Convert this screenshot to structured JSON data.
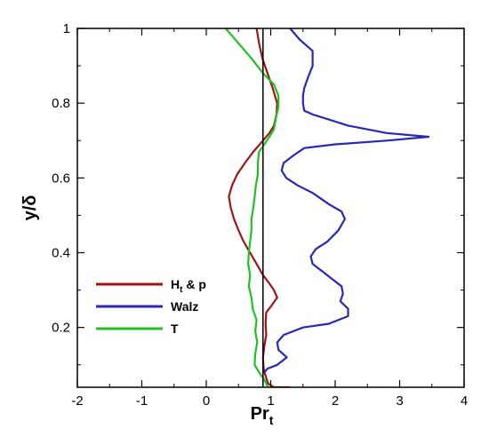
{
  "chart_data": {
    "type": "line",
    "xlabel": "Pr",
    "xlabel_sub": "t",
    "ylabel": "y/δ",
    "xlim": [
      -2,
      4
    ],
    "ylim": [
      0.04,
      1.0
    ],
    "xticks": [
      "-2",
      "-1",
      "0",
      "1",
      "2",
      "3",
      "4"
    ],
    "xtick_values": [
      -2,
      -1,
      0,
      1,
      2,
      3,
      4
    ],
    "yticks": [
      "0.2",
      "0.4",
      "0.6",
      "0.8",
      "1"
    ],
    "ytick_values": [
      0.2,
      0.4,
      0.6,
      0.8,
      1.0
    ],
    "grid": false,
    "legend_position": "left-bottom",
    "reference_line": {
      "x": 0.88,
      "color": "#000000"
    },
    "series": [
      {
        "name": "H",
        "name_sub": "t",
        "name_suffix": " & p",
        "color": "#a01414",
        "points": [
          [
            0.78,
            1.0
          ],
          [
            0.82,
            0.96
          ],
          [
            0.87,
            0.92
          ],
          [
            0.95,
            0.88
          ],
          [
            1.03,
            0.84
          ],
          [
            1.1,
            0.8
          ],
          [
            1.09,
            0.77
          ],
          [
            1.05,
            0.74
          ],
          [
            0.98,
            0.72
          ],
          [
            0.88,
            0.7
          ],
          [
            0.73,
            0.67
          ],
          [
            0.6,
            0.64
          ],
          [
            0.48,
            0.61
          ],
          [
            0.4,
            0.58
          ],
          [
            0.35,
            0.55
          ],
          [
            0.38,
            0.52
          ],
          [
            0.43,
            0.49
          ],
          [
            0.5,
            0.46
          ],
          [
            0.58,
            0.43
          ],
          [
            0.68,
            0.4
          ],
          [
            0.78,
            0.37
          ],
          [
            0.88,
            0.34
          ],
          [
            0.97,
            0.32
          ],
          [
            1.05,
            0.3
          ],
          [
            1.1,
            0.28
          ],
          [
            1.02,
            0.26
          ],
          [
            0.93,
            0.24
          ],
          [
            0.92,
            0.21
          ],
          [
            0.93,
            0.18
          ],
          [
            0.9,
            0.15
          ],
          [
            0.88,
            0.12
          ],
          [
            0.89,
            0.09
          ],
          [
            0.92,
            0.07
          ],
          [
            0.96,
            0.05
          ],
          [
            1.05,
            0.04
          ],
          [
            1.3,
            0.04
          ]
        ]
      },
      {
        "name": "Walz",
        "color": "#2828b4",
        "points": [
          [
            1.3,
            1.0
          ],
          [
            1.45,
            0.97
          ],
          [
            1.65,
            0.94
          ],
          [
            1.65,
            0.9
          ],
          [
            1.58,
            0.87
          ],
          [
            1.52,
            0.84
          ],
          [
            1.5,
            0.82
          ],
          [
            1.5,
            0.8
          ],
          [
            1.52,
            0.78
          ],
          [
            1.65,
            0.77
          ],
          [
            2.2,
            0.74
          ],
          [
            2.8,
            0.72
          ],
          [
            3.45,
            0.71
          ],
          [
            2.8,
            0.7
          ],
          [
            2.0,
            0.69
          ],
          [
            1.52,
            0.68
          ],
          [
            1.35,
            0.66
          ],
          [
            1.2,
            0.64
          ],
          [
            1.17,
            0.62
          ],
          [
            1.24,
            0.6
          ],
          [
            1.42,
            0.58
          ],
          [
            1.65,
            0.56
          ],
          [
            1.9,
            0.53
          ],
          [
            2.1,
            0.51
          ],
          [
            2.15,
            0.49
          ],
          [
            2.05,
            0.46
          ],
          [
            1.88,
            0.43
          ],
          [
            1.7,
            0.41
          ],
          [
            1.62,
            0.39
          ],
          [
            1.65,
            0.37
          ],
          [
            1.8,
            0.35
          ],
          [
            1.95,
            0.33
          ],
          [
            2.1,
            0.31
          ],
          [
            2.12,
            0.29
          ],
          [
            2.08,
            0.27
          ],
          [
            2.2,
            0.25
          ],
          [
            2.2,
            0.23
          ],
          [
            1.9,
            0.21
          ],
          [
            1.5,
            0.2
          ],
          [
            1.2,
            0.18
          ],
          [
            1.1,
            0.16
          ],
          [
            1.12,
            0.14
          ],
          [
            1.25,
            0.12
          ],
          [
            1.1,
            0.1
          ],
          [
            0.95,
            0.09
          ],
          [
            0.9,
            0.08
          ]
        ]
      },
      {
        "name": "T",
        "color": "#22c022",
        "points": [
          [
            0.3,
            1.0
          ],
          [
            0.5,
            0.96
          ],
          [
            0.7,
            0.92
          ],
          [
            0.88,
            0.88
          ],
          [
            1.05,
            0.85
          ],
          [
            1.12,
            0.82
          ],
          [
            1.12,
            0.79
          ],
          [
            1.08,
            0.76
          ],
          [
            1.05,
            0.73
          ],
          [
            0.98,
            0.71
          ],
          [
            0.9,
            0.69
          ],
          [
            0.82,
            0.67
          ],
          [
            0.8,
            0.64
          ],
          [
            0.8,
            0.61
          ],
          [
            0.77,
            0.58
          ],
          [
            0.75,
            0.55
          ],
          [
            0.73,
            0.52
          ],
          [
            0.7,
            0.49
          ],
          [
            0.7,
            0.46
          ],
          [
            0.68,
            0.43
          ],
          [
            0.66,
            0.4
          ],
          [
            0.65,
            0.37
          ],
          [
            0.68,
            0.34
          ],
          [
            0.66,
            0.31
          ],
          [
            0.7,
            0.28
          ],
          [
            0.72,
            0.25
          ],
          [
            0.78,
            0.22
          ],
          [
            0.76,
            0.19
          ],
          [
            0.79,
            0.16
          ],
          [
            0.76,
            0.13
          ],
          [
            0.75,
            0.1
          ],
          [
            0.82,
            0.08
          ],
          [
            0.9,
            0.06
          ],
          [
            0.93,
            0.05
          ],
          [
            0.96,
            0.04
          ]
        ]
      }
    ]
  }
}
